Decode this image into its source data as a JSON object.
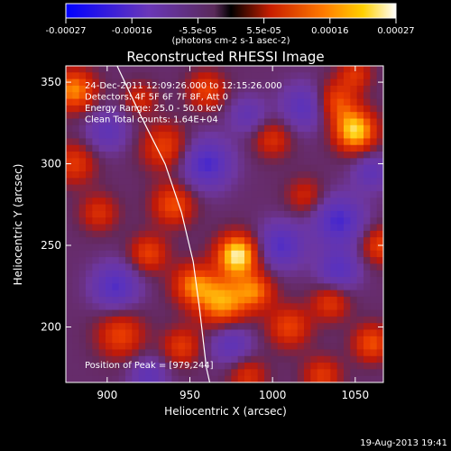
{
  "chart_data": {
    "type": "heatmap",
    "title": "Reconstructed RHESSI Image",
    "xlabel": "Heliocentric X (arcsec)",
    "ylabel": "Heliocentric Y (arcsec)",
    "xlim": [
      875,
      1067
    ],
    "ylim": [
      166,
      360
    ],
    "x_ticks": [
      900,
      950,
      1000,
      1050
    ],
    "y_ticks": [
      200,
      250,
      300,
      350
    ],
    "colorbar": {
      "ticks": [
        "-0.00027",
        "-0.00016",
        "-5.5e-05",
        "5.5e-05",
        "0.00016",
        "0.00027"
      ],
      "unit_label": "(photons cm-2 s-1 asec-2)",
      "range": [
        -0.00027,
        0.00027
      ]
    },
    "annotations": [
      "24-Dec-2011 12:09:26.000 to 12:15:26.000",
      "Detectors: 4F 5F 6F 7F 8F, Att 0",
      "Energy Range: 25.0 - 50.0 keV",
      "Clean    Total counts: 1.64E+04"
    ],
    "peak_label": "Position of Peak = [979,244]",
    "peak": {
      "x": 979,
      "y": 244,
      "value": 0.00027
    },
    "sources": [
      {
        "x": 979,
        "y": 244,
        "amp": 1.0,
        "w": 9
      },
      {
        "x": 970,
        "y": 215,
        "amp": 0.75,
        "w": 11
      },
      {
        "x": 952,
        "y": 226,
        "amp": 0.6,
        "w": 9
      },
      {
        "x": 990,
        "y": 222,
        "amp": 0.55,
        "w": 8
      },
      {
        "x": 1050,
        "y": 320,
        "amp": 0.9,
        "w": 9
      },
      {
        "x": 1038,
        "y": 338,
        "amp": 0.55,
        "w": 9
      },
      {
        "x": 880,
        "y": 345,
        "amp": 0.7,
        "w": 9
      },
      {
        "x": 880,
        "y": 300,
        "amp": 0.45,
        "w": 9
      },
      {
        "x": 935,
        "y": 310,
        "amp": 0.5,
        "w": 10
      },
      {
        "x": 940,
        "y": 275,
        "amp": 0.55,
        "w": 9
      },
      {
        "x": 925,
        "y": 245,
        "amp": 0.5,
        "w": 8
      },
      {
        "x": 908,
        "y": 195,
        "amp": 0.5,
        "w": 10
      },
      {
        "x": 945,
        "y": 188,
        "amp": 0.45,
        "w": 8
      },
      {
        "x": 1010,
        "y": 200,
        "amp": 0.5,
        "w": 9
      },
      {
        "x": 1035,
        "y": 215,
        "amp": 0.45,
        "w": 8
      },
      {
        "x": 1060,
        "y": 190,
        "amp": 0.55,
        "w": 8
      },
      {
        "x": 1065,
        "y": 250,
        "amp": 0.5,
        "w": 8
      },
      {
        "x": 1000,
        "y": 315,
        "amp": 0.4,
        "w": 8
      },
      {
        "x": 960,
        "y": 345,
        "amp": 0.5,
        "w": 8
      },
      {
        "x": 1020,
        "y": 280,
        "amp": 0.35,
        "w": 8
      },
      {
        "x": 895,
        "y": 270,
        "amp": 0.4,
        "w": 8
      },
      {
        "x": 920,
        "y": 340,
        "amp": 0.35,
        "w": 7
      },
      {
        "x": 1030,
        "y": 170,
        "amp": 0.45,
        "w": 8
      },
      {
        "x": 985,
        "y": 170,
        "amp": 0.4,
        "w": 8
      },
      {
        "x": 1050,
        "y": 355,
        "amp": 0.4,
        "w": 7
      },
      {
        "x": 960,
        "y": 300,
        "amp": -0.6,
        "w": 11
      },
      {
        "x": 1005,
        "y": 250,
        "amp": -0.55,
        "w": 10
      },
      {
        "x": 1040,
        "y": 265,
        "amp": -0.6,
        "w": 11
      },
      {
        "x": 905,
        "y": 225,
        "amp": -0.55,
        "w": 10
      },
      {
        "x": 1040,
        "y": 235,
        "amp": -0.5,
        "w": 9
      },
      {
        "x": 975,
        "y": 190,
        "amp": -0.45,
        "w": 9
      },
      {
        "x": 1020,
        "y": 335,
        "amp": -0.5,
        "w": 10
      },
      {
        "x": 900,
        "y": 320,
        "amp": -0.4,
        "w": 9
      },
      {
        "x": 1060,
        "y": 295,
        "amp": -0.4,
        "w": 8
      },
      {
        "x": 925,
        "y": 170,
        "amp": -0.4,
        "w": 8
      },
      {
        "x": 985,
        "y": 330,
        "amp": -0.35,
        "w": 8
      }
    ],
    "limb_curve": [
      [
        906,
        360
      ],
      [
        920,
        330
      ],
      [
        935,
        300
      ],
      [
        945,
        270
      ],
      [
        952,
        240
      ],
      [
        956,
        210
      ],
      [
        960,
        175
      ],
      [
        962,
        166
      ]
    ]
  },
  "footer": {
    "timestamp": "19-Aug-2013 19:41"
  }
}
